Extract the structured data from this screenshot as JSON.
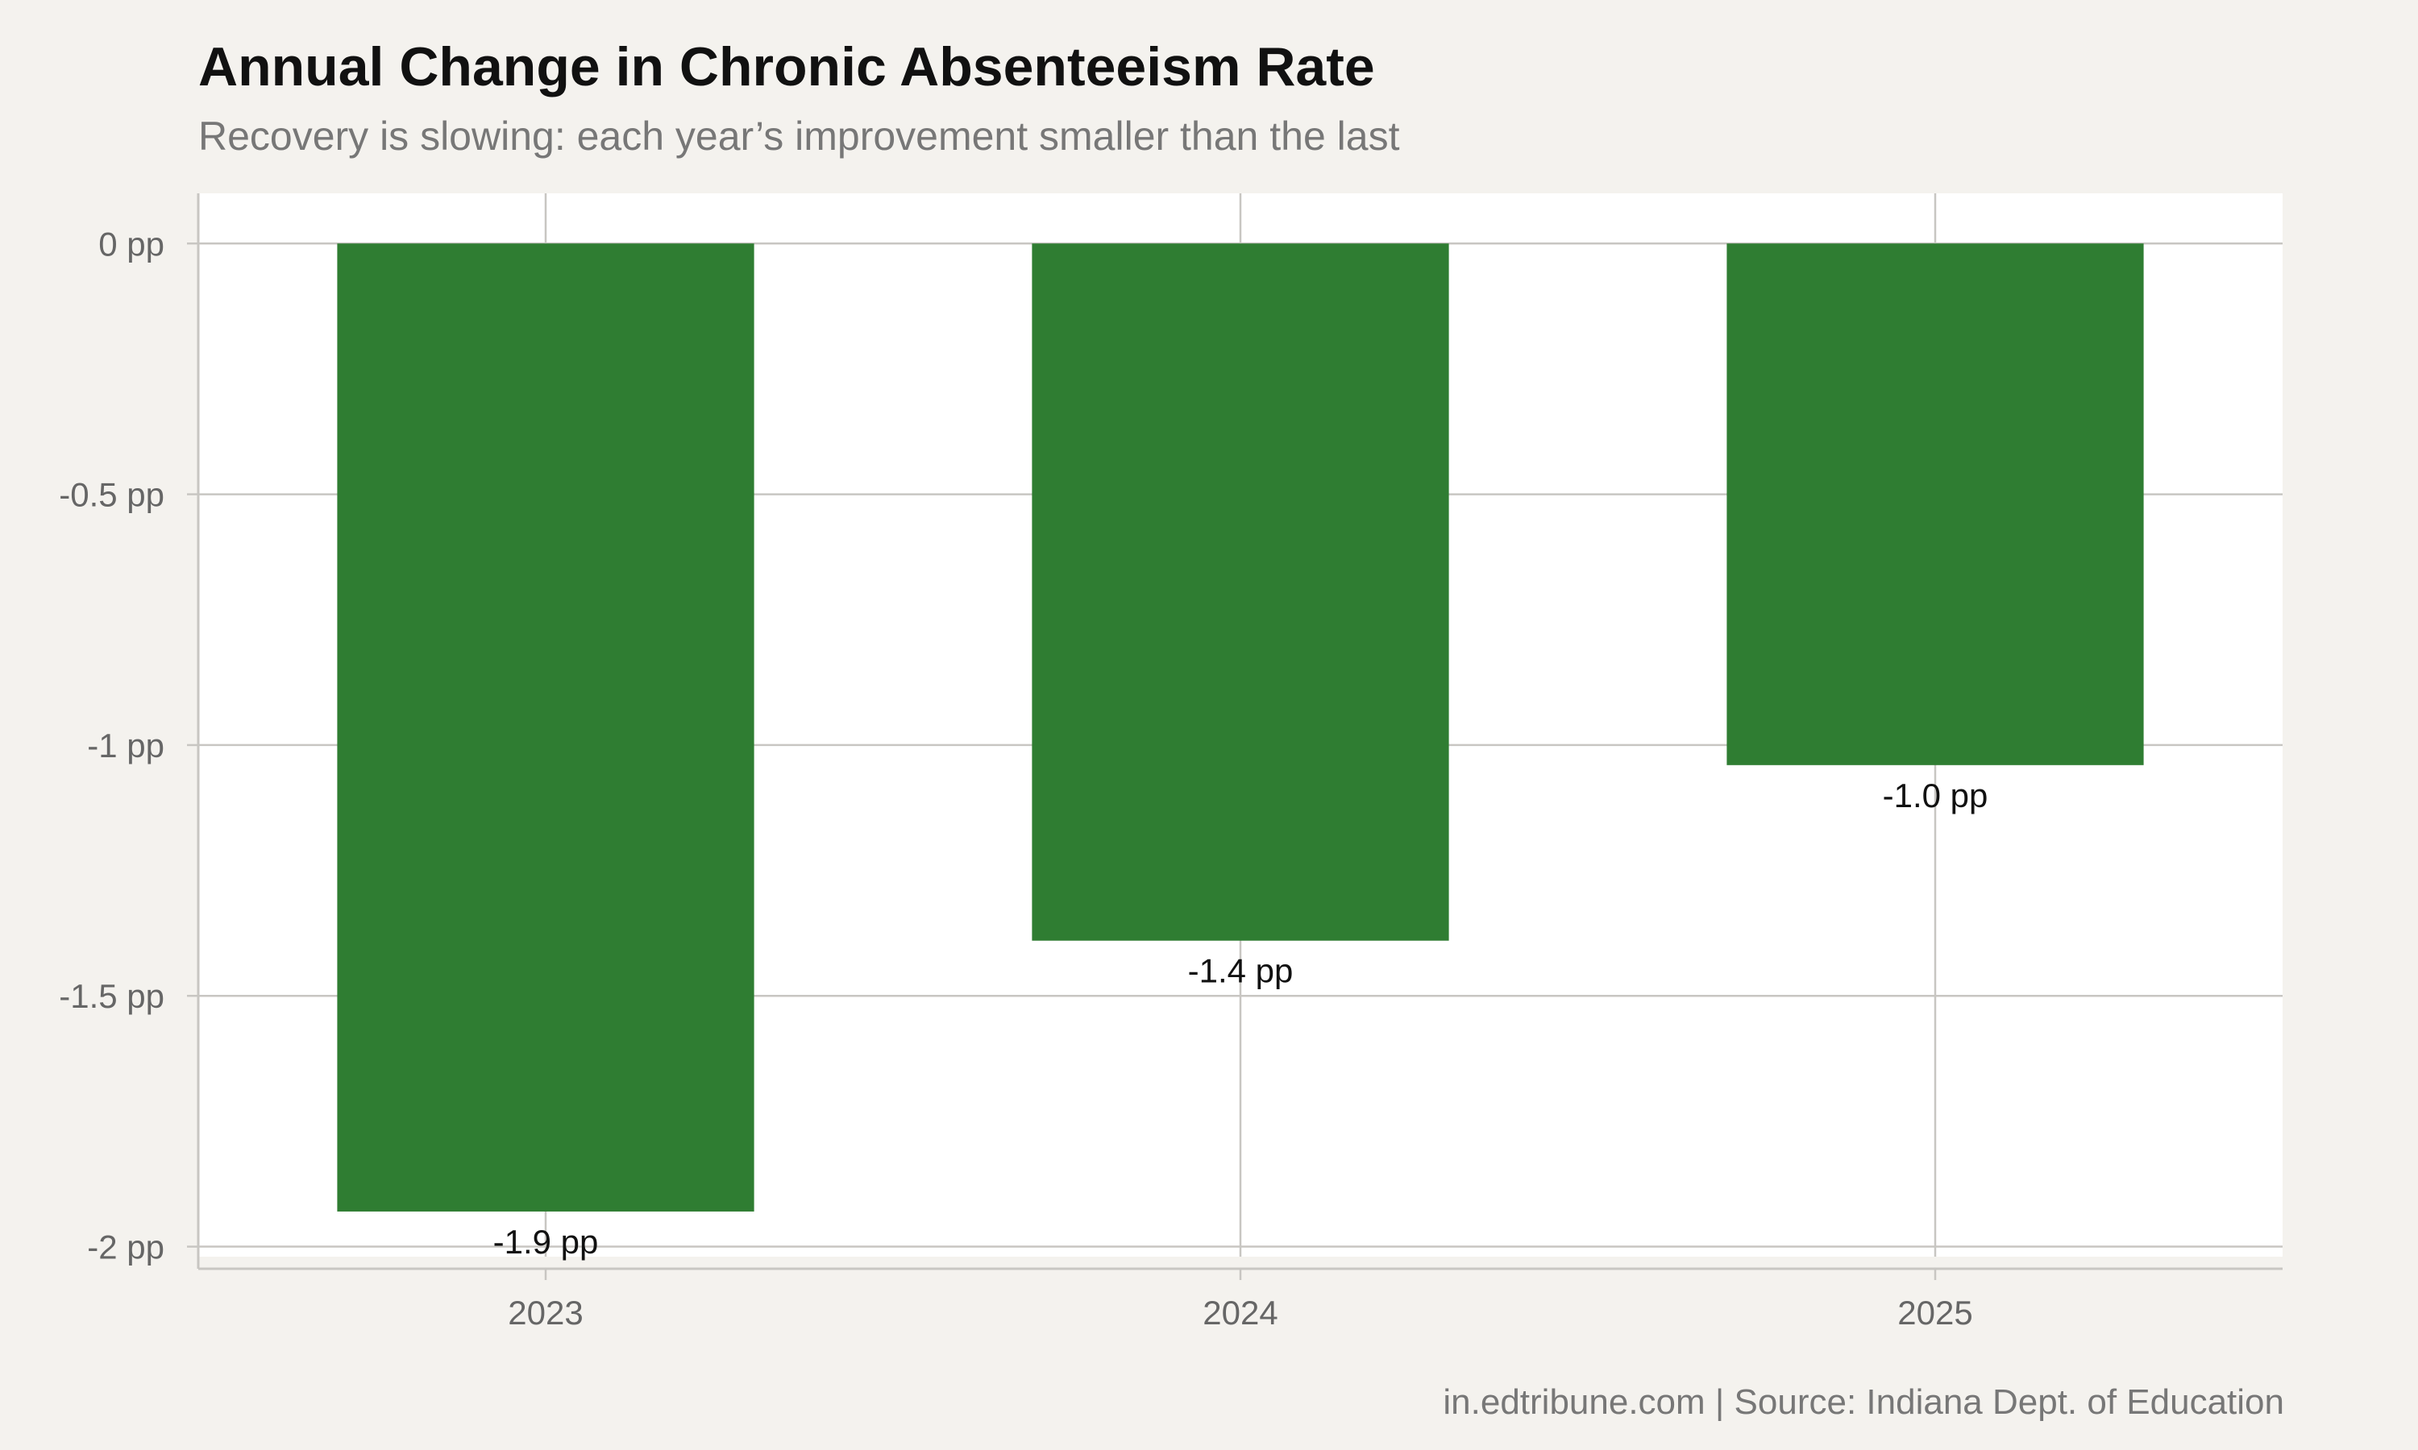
{
  "title": "Annual Change in Chronic Absenteeism Rate",
  "subtitle": "Recovery is slowing: each year’s improvement smaller than the last",
  "caption": "in.edtribune.com | Source: Indiana Dept. of Education",
  "colors": {
    "bar": "#2f7d32",
    "panel": "#ffffff",
    "background": "#f4f2ee",
    "grid": "#c8c6c2"
  },
  "chart_data": {
    "type": "bar",
    "categories": [
      "2023",
      "2024",
      "2025"
    ],
    "values": [
      -1.93,
      -1.39,
      -1.04
    ],
    "data_labels": [
      "-1.9 pp",
      "-1.4 pp",
      "-1.0 pp"
    ],
    "y_ticks": [
      0,
      -0.5,
      -1,
      -1.5,
      -2
    ],
    "y_tick_labels": [
      "0 pp",
      "-0.5 pp",
      "-1 pp",
      "-1.5 pp",
      "-2 pp"
    ],
    "ylim": [
      -2.02,
      0.1
    ],
    "xlabel": "",
    "ylabel": "",
    "grid": true,
    "legend": "none"
  }
}
